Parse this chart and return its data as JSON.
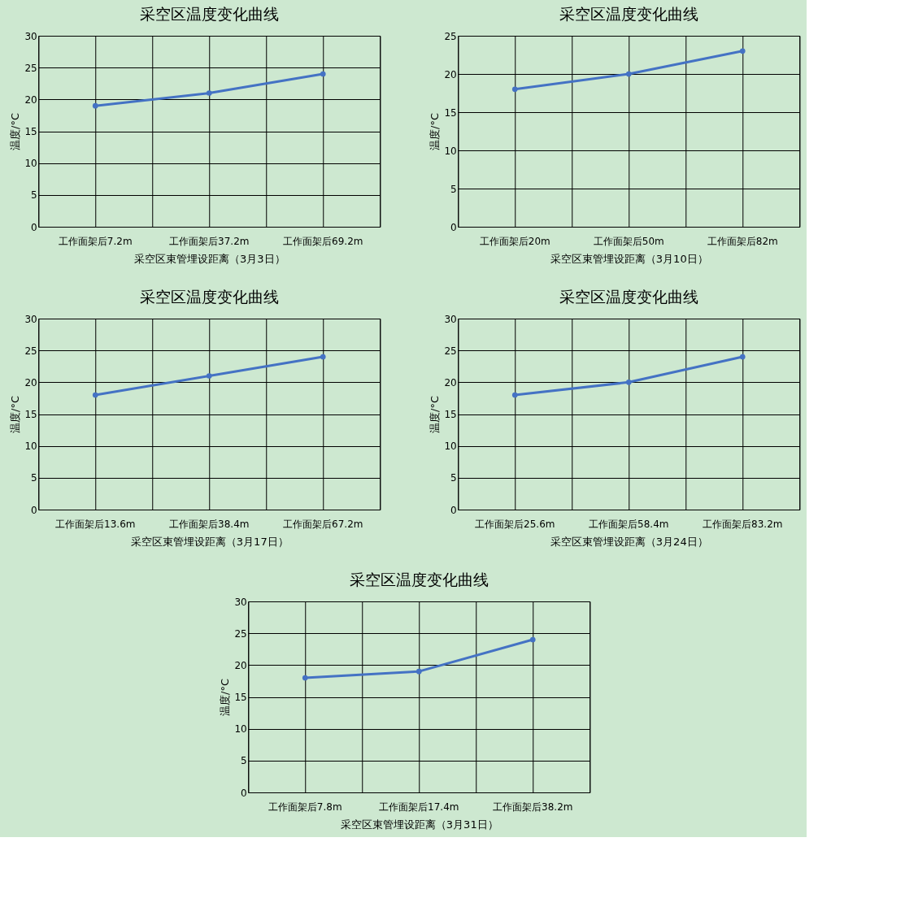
{
  "chart_data": [
    {
      "type": "line",
      "title": "采空区温度变化曲线",
      "xlabel": "采空区束管埋设距离（3月3日）",
      "ylabel": "温度/°C",
      "categories": [
        "工作面架后7.2m",
        "工作面架后37.2m",
        "工作面架后69.2m"
      ],
      "series": [
        {
          "color": "#4472c4",
          "values": [
            19,
            21,
            24
          ]
        }
      ],
      "ylim": [
        0,
        30
      ],
      "yticks": [
        0,
        5,
        10,
        15,
        20,
        25,
        30
      ],
      "grid": true,
      "legend": false,
      "marker": "circle",
      "line_style": "solid"
    },
    {
      "type": "line",
      "title": "采空区温度变化曲线",
      "xlabel": "采空区束管埋设距离（3月10日）",
      "ylabel": "温度/°C",
      "categories": [
        "工作面架后20m",
        "工作面架后50m",
        "工作面架后82m"
      ],
      "series": [
        {
          "color": "#4472c4",
          "values": [
            18,
            20,
            23
          ]
        }
      ],
      "ylim": [
        0,
        25
      ],
      "yticks": [
        0,
        5,
        10,
        15,
        20,
        25
      ],
      "grid": true,
      "legend": false,
      "marker": "circle",
      "line_style": "solid"
    },
    {
      "type": "line",
      "title": "采空区温度变化曲线",
      "xlabel": "采空区束管埋设距离（3月17日）",
      "ylabel": "温度/°C",
      "categories": [
        "工作面架后13.6m",
        "工作面架后38.4m",
        "工作面架后67.2m"
      ],
      "series": [
        {
          "color": "#4472c4",
          "values": [
            18,
            21,
            24
          ]
        }
      ],
      "ylim": [
        0,
        30
      ],
      "yticks": [
        0,
        5,
        10,
        15,
        20,
        25,
        30
      ],
      "grid": true,
      "legend": false,
      "marker": "circle",
      "line_style": "solid"
    },
    {
      "type": "line",
      "title": "采空区温度变化曲线",
      "xlabel": "采空区束管埋设距离（3月24日）",
      "ylabel": "温度/°C",
      "categories": [
        "工作面架后25.6m",
        "工作面架后58.4m",
        "工作面架后83.2m"
      ],
      "series": [
        {
          "color": "#4472c4",
          "values": [
            18,
            20,
            24
          ]
        }
      ],
      "ylim": [
        0,
        30
      ],
      "yticks": [
        0,
        5,
        10,
        15,
        20,
        25,
        30
      ],
      "grid": true,
      "legend": false,
      "marker": "circle",
      "line_style": "solid"
    },
    {
      "type": "line",
      "title": "采空区温度变化曲线",
      "xlabel": "采空区束管埋设距离（3月31日）",
      "ylabel": "温度/°C",
      "categories": [
        "工作面架后7.8m",
        "工作面架后17.4m",
        "工作面架后38.2m"
      ],
      "series": [
        {
          "color": "#4472c4",
          "values": [
            18,
            19,
            24
          ]
        }
      ],
      "ylim": [
        0,
        30
      ],
      "yticks": [
        0,
        5,
        10,
        15,
        20,
        25,
        30
      ],
      "grid": true,
      "legend": false,
      "marker": "circle",
      "line_style": "solid"
    }
  ]
}
